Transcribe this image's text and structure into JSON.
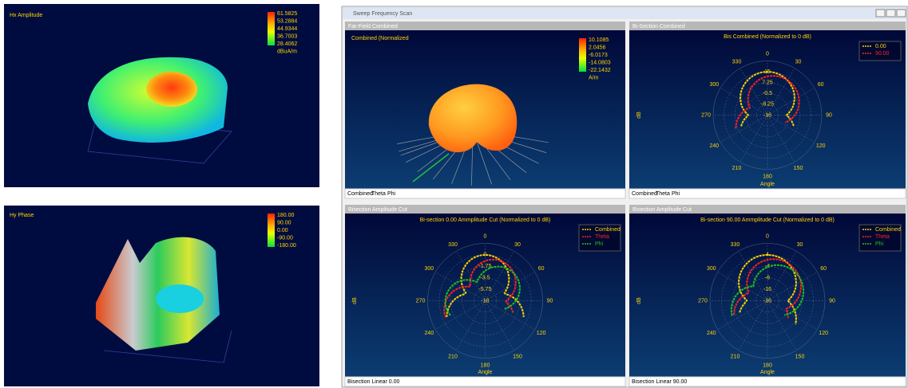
{
  "left_panels": [
    {
      "title": "Hx Amplitude",
      "colorbar": [
        "61.5825",
        "53.2884",
        "44.9344",
        "36.7003",
        "28.4062"
      ],
      "unit": "dBuA/m"
    },
    {
      "title": "Hy Phase",
      "colorbar": [
        "180.00",
        "90.00",
        "0.00",
        "-90.00",
        "-180.00"
      ]
    }
  ],
  "window": {
    "title": "Sweep Frequency Scan",
    "angle_labels": [
      "0",
      "30",
      "60",
      "90",
      "120",
      "150",
      "180",
      "210",
      "240",
      "270",
      "300",
      "330"
    ],
    "panes": [
      {
        "header": "Far-Field Combined",
        "plot_title": "Combined (Normalized",
        "colorbar": [
          "10.1085",
          "2.0456",
          "-6.0173",
          "-14.0803",
          "-22.1432"
        ],
        "unit": "A/m",
        "tabs": [
          "Combined",
          "Theta",
          "Phi"
        ]
      },
      {
        "header": "Bi-Section Combined",
        "plot_title": "Bis Combined (Normalized to 0 dB)",
        "legend": [
          "0.00",
          "90.00"
        ],
        "radial_labels": [
          "15",
          "7.25",
          "-0.5",
          "-8.25",
          "-16"
        ],
        "x_label": "Angle",
        "y_label": "dB",
        "tabs": [
          "Combined",
          "Theta",
          "Phi"
        ]
      },
      {
        "header": "Bisection Amplitude Cut",
        "plot_title": "Bi-section 0.00 Ammplitude Cut (Normalized to 0 dB)",
        "legend": [
          "Combined",
          "Theta",
          "Phi"
        ],
        "radial_labels": [
          "0",
          "-1.75",
          "-3.5",
          "-5.75",
          "-18"
        ],
        "x_label": "Angle",
        "y_label": "dB",
        "status": "Bisection Linear 0.00"
      },
      {
        "header": "Bisection Amplitude Cut",
        "plot_title": "Bi-section 90.00 Ammplitude Cut (Normalized to 0 dB)",
        "legend": [
          "Combined",
          "Theta",
          "Phi"
        ],
        "radial_labels": [
          "4",
          "-4",
          "-6",
          "-16",
          "-26"
        ],
        "x_label": "Angle",
        "y_label": "dB",
        "status": "Bisection Linear 90.00"
      }
    ]
  }
}
